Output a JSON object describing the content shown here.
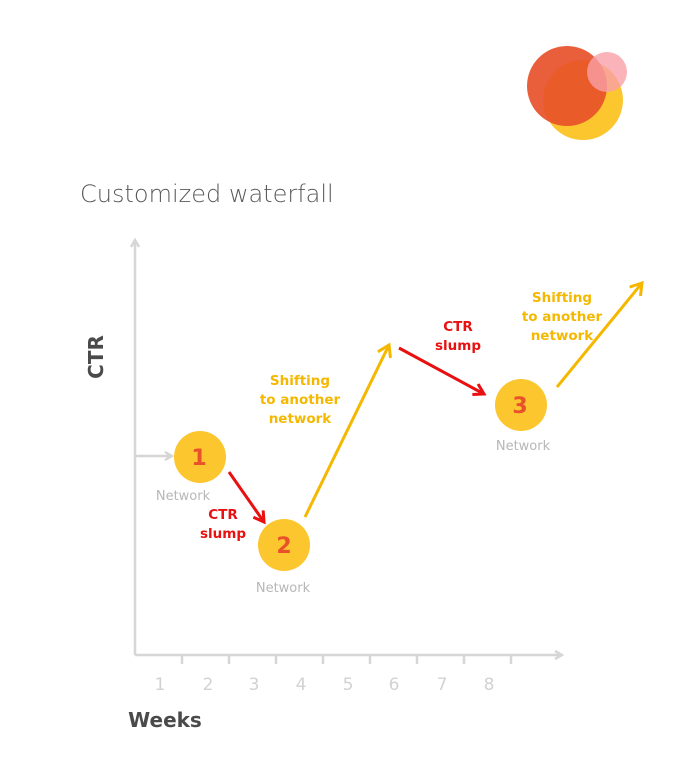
{
  "diagram": {
    "title": "Customized waterfall",
    "y_axis_label": "CTR",
    "x_axis_label": "Weeks",
    "x_ticks": [
      "1",
      "2",
      "3",
      "4",
      "5",
      "6",
      "7",
      "8"
    ],
    "nodes": [
      {
        "number": "1",
        "label": "Network"
      },
      {
        "number": "2",
        "label": "Network"
      },
      {
        "number": "3",
        "label": "Network"
      }
    ],
    "slump_annotations": [
      {
        "line1": "CTR",
        "line2": "slump"
      },
      {
        "line1": "CTR",
        "line2": "slump"
      }
    ],
    "shift_annotations": [
      {
        "line1": "Shifting",
        "line2": "to another",
        "line3": "network"
      },
      {
        "line1": "Shifting",
        "line2": "to another",
        "line3": "network"
      }
    ]
  },
  "colors": {
    "node_fill": "#fcc62f",
    "node_number": "#e8512a",
    "slump_arrow": "#e81010",
    "shift_arrow": "#f5b800",
    "axis": "#d6d6d6",
    "logo_orange": "#e8512a",
    "logo_yellow": "#fcc62f",
    "logo_pink": "#f7a0a8"
  }
}
